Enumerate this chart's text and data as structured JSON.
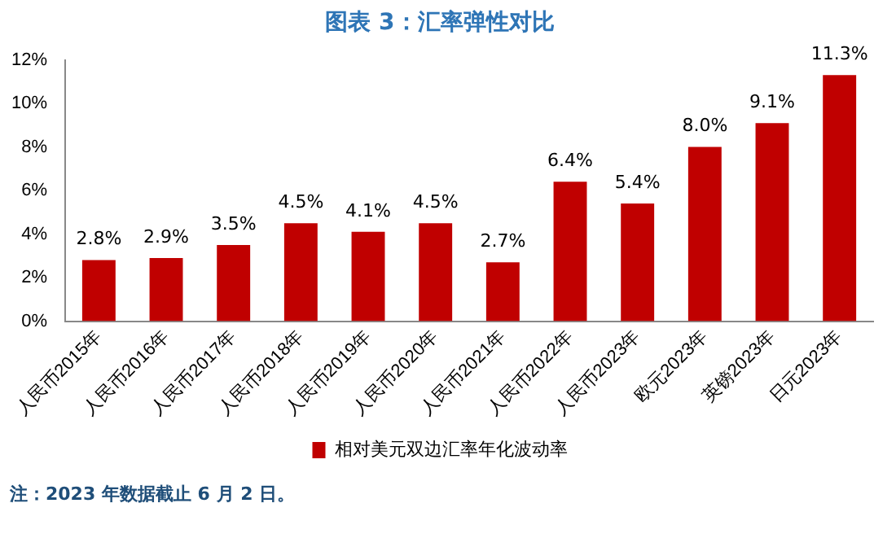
{
  "chart_data": {
    "type": "bar",
    "title": "图表 3：汇率弹性对比",
    "categories": [
      "人民币2015年",
      "人民币2016年",
      "人民币2017年",
      "人民币2018年",
      "人民币2019年",
      "人民币2020年",
      "人民币2021年",
      "人民币2022年",
      "人民币2023年",
      "欧元2023年",
      "英镑2023年",
      "日元2023年"
    ],
    "series": [
      {
        "name": "相对美元双边汇率年化波动率",
        "color": "#c00000",
        "values": [
          2.8,
          2.9,
          3.5,
          4.5,
          4.1,
          4.5,
          2.7,
          6.4,
          5.4,
          8.0,
          9.1,
          11.3
        ],
        "value_labels": [
          "2.8%",
          "2.9%",
          "3.5%",
          "4.5%",
          "4.1%",
          "4.5%",
          "2.7%",
          "6.4%",
          "5.4%",
          "8.0%",
          "9.1%",
          "11.3%"
        ]
      }
    ],
    "ylim": [
      0,
      12
    ],
    "yticks": [
      {
        "value": 0,
        "label": "0%"
      },
      {
        "value": 2,
        "label": "2%"
      },
      {
        "value": 4,
        "label": "4%"
      },
      {
        "value": 6,
        "label": "6%"
      },
      {
        "value": 8,
        "label": "8%"
      },
      {
        "value": 10,
        "label": "10%"
      },
      {
        "value": 12,
        "label": "12%"
      }
    ],
    "grid": false,
    "legend": "bottom",
    "annotations": [
      "注：2023 年数据截止 6 月 2 日。"
    ]
  }
}
